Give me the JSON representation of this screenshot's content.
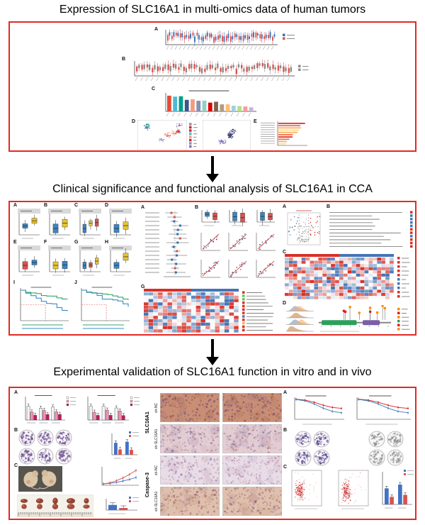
{
  "sections": [
    {
      "title": "Expression of SLC16A1 in multi-omics data of human tumors"
    },
    {
      "title": "Clinical significance and functional analysis of SLC16A1 in CCA"
    },
    {
      "title": "Experimental validation of SLC16A1 function in vitro and in vivo"
    }
  ],
  "letters": {
    "A": "A",
    "B": "B",
    "C": "C",
    "D": "D",
    "E": "E",
    "F": "F",
    "G": "G",
    "H": "H",
    "I": "I",
    "J": "J"
  },
  "ihc": {
    "groups": [
      "SLC16A1",
      "Caspase-3"
    ],
    "rows": [
      "sh-NC",
      "sh-SLC16A1",
      "sh-NC",
      "sh-SLC16A1"
    ]
  },
  "colors": {
    "box_border": "#e32a23",
    "arrow": "#000000",
    "tumor_red": "#d9534f",
    "normal_blue": "#3a6fb5",
    "box_blue": "#3b86c4",
    "box_yellow": "#e8c431",
    "km_green": "#18a05c",
    "km_blue": "#2d7fc1",
    "heat_red": "#d73027",
    "heat_blue": "#4575b4",
    "bar_pink": "#f48fb1",
    "bar_magenta": "#c2185b",
    "colony_purple": "#6a4b8a",
    "colony_gray": "#8a8f84",
    "flow_red": "#d92525"
  }
}
